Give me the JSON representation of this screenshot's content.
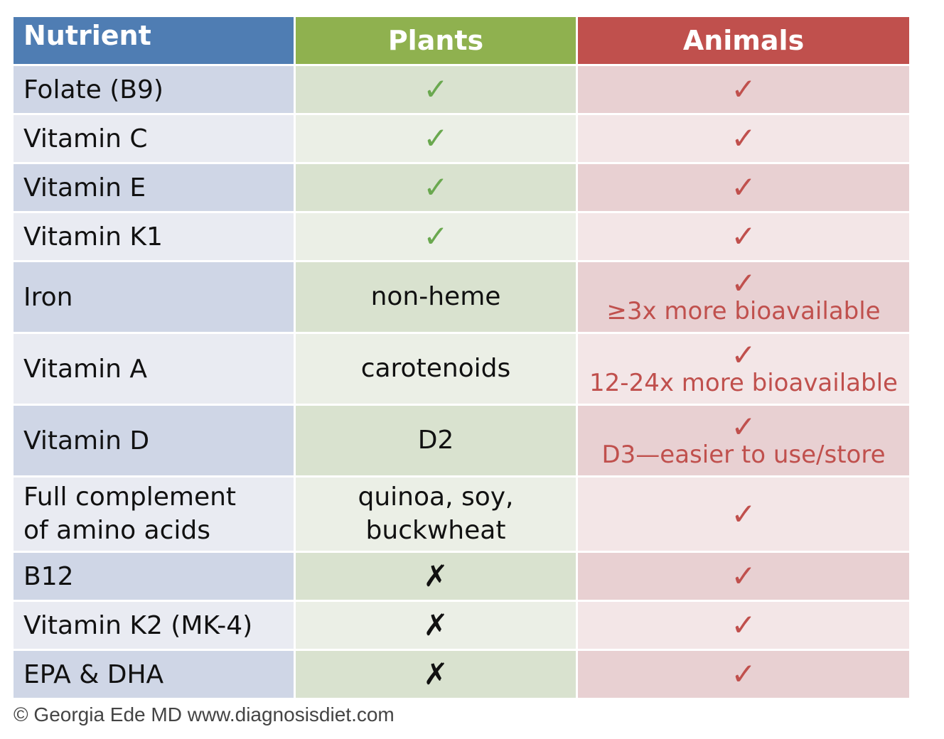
{
  "headers": [
    "Nutrient",
    "Plants",
    "Animals"
  ],
  "rows": [
    {
      "nutrient": "Folate (B9)",
      "plants": "✓",
      "animals": "✓",
      "animals_note": ""
    },
    {
      "nutrient": "Vitamin C",
      "plants": "✓",
      "animals": "✓",
      "animals_note": ""
    },
    {
      "nutrient": "Vitamin E",
      "plants": "✓",
      "animals": "✓",
      "animals_note": ""
    },
    {
      "nutrient": "Vitamin K1",
      "plants": "✓",
      "animals": "✓",
      "animals_note": ""
    },
    {
      "nutrient": "Iron",
      "plants": "non-heme",
      "animals": "✓",
      "animals_note": "≥3x more bioavailable"
    },
    {
      "nutrient": "Vitamin A",
      "plants": "carotenoids",
      "animals": "✓",
      "animals_note": "12-24x more bioavailable"
    },
    {
      "nutrient": "Vitamin D",
      "plants": "D2",
      "animals": "✓",
      "animals_note": "D3—easier to use/store"
    },
    {
      "nutrient": "Full complement of amino acids",
      "plants": "quinoa, soy, buckwheat",
      "animals": "✓",
      "animals_note": ""
    },
    {
      "nutrient": "B12",
      "plants": "✗",
      "animals": "✓",
      "animals_note": ""
    },
    {
      "nutrient": "Vitamin K2 (MK-4)",
      "plants": "✗",
      "animals": "✓",
      "animals_note": ""
    },
    {
      "nutrient": "EPA & DHA",
      "plants": "✗",
      "animals": "✓",
      "animals_note": ""
    }
  ],
  "footer": "© Georgia Ede MD www.diagnosisdiet.com",
  "colors": {
    "nutrient_header": "#4f7db3",
    "plants_header": "#8fb14f",
    "animals_header": "#c0504d",
    "plants_check": "#6aa84f",
    "animals_check": "#c0504d"
  }
}
